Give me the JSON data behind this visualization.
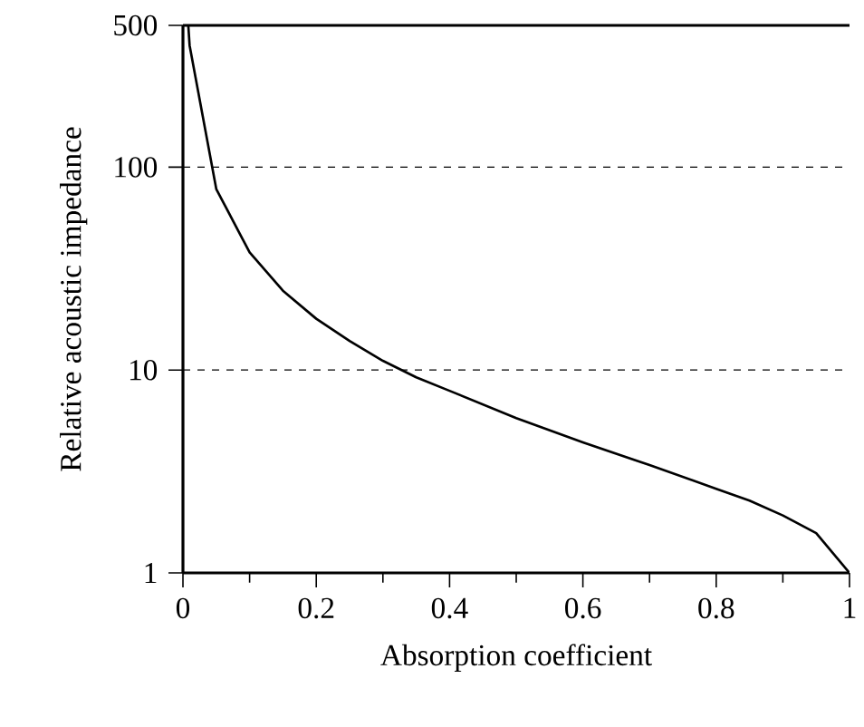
{
  "chart_data": {
    "type": "line",
    "xlabel": "Absorption coefficient",
    "ylabel": "Relative acoustic impedance",
    "x": [
      0.008,
      0.01,
      0.05,
      0.1,
      0.15,
      0.2,
      0.25,
      0.3,
      0.35,
      0.4,
      0.5,
      0.6,
      0.7,
      0.8,
      0.85,
      0.9,
      0.95,
      1.0
    ],
    "series": [
      {
        "color": "#000000",
        "values": [
          500,
          398,
          78,
          38,
          24.6,
          17.9,
          13.9,
          11.1,
          9.2,
          7.9,
          5.8,
          4.4,
          3.4,
          2.6,
          2.27,
          1.92,
          1.57,
          1
        ]
      }
    ],
    "xlim": [
      0,
      1
    ],
    "ylim": [
      1,
      500
    ],
    "xticks": [
      0,
      0.2,
      0.4,
      0.6,
      0.8,
      1
    ],
    "yticks": [
      1,
      10,
      100,
      500
    ],
    "log": "y",
    "grid": "y",
    "line_style": "solid",
    "marker": "none"
  }
}
